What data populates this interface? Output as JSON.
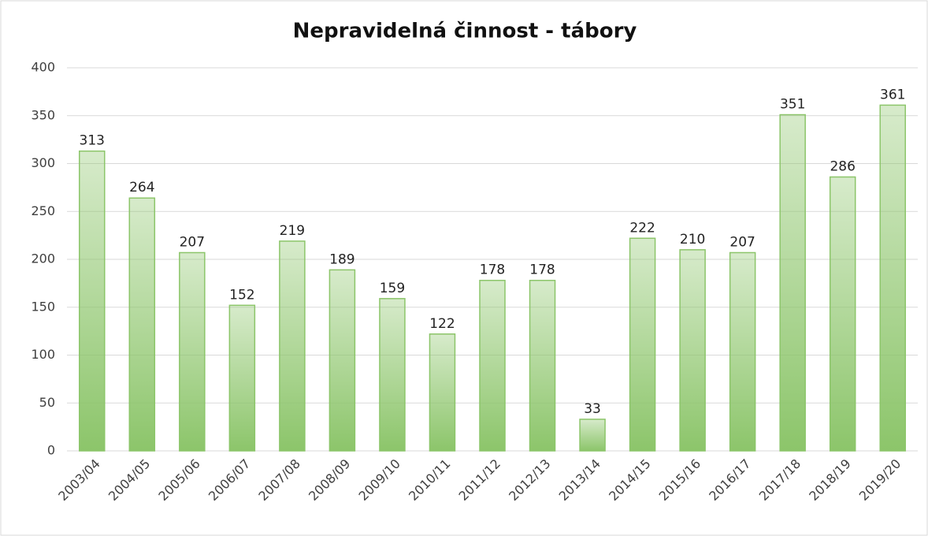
{
  "chart_data": {
    "type": "bar",
    "title": "Nepravidelná činnost - tábory",
    "categories": [
      "2003/04",
      "2004/05",
      "2005/06",
      "2006/07",
      "2007/08",
      "2008/09",
      "2009/10",
      "2010/11",
      "2011/12",
      "2012/13",
      "2013/14",
      "2014/15",
      "2015/16",
      "2016/17",
      "2017/18",
      "2018/19",
      "2019/20"
    ],
    "values": [
      313,
      264,
      207,
      152,
      219,
      189,
      159,
      122,
      178,
      178,
      33,
      222,
      210,
      207,
      351,
      286,
      361
    ],
    "color": "#8cc56a",
    "ylim": [
      0,
      400
    ],
    "yticks": [
      0,
      50,
      100,
      150,
      200,
      250,
      300,
      350,
      400
    ],
    "grid": true
  }
}
